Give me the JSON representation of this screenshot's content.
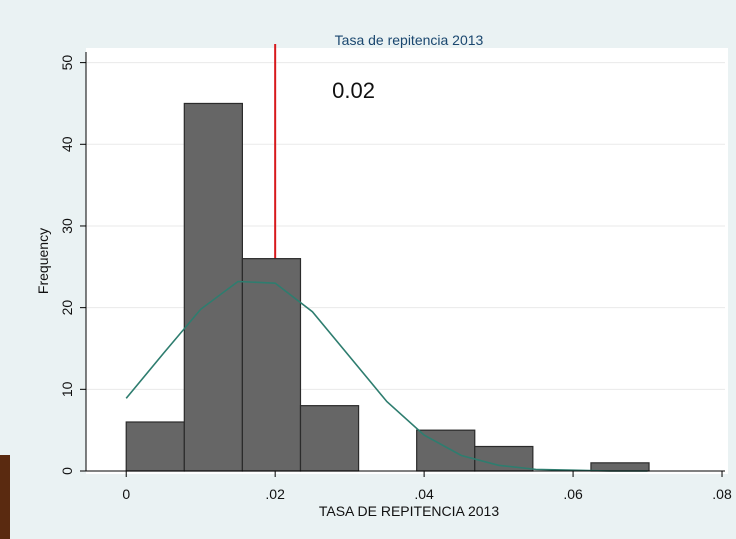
{
  "chart_data": {
    "type": "histogram",
    "title": "Tasa de repitencia 2013",
    "xlabel": "TASA DE REPITENCIA 2013",
    "ylabel": "Frequency",
    "bins": [
      0,
      0.0078,
      0.0156,
      0.0234,
      0.0312,
      0.039,
      0.0468,
      0.0546,
      0.0624,
      0.0702
    ],
    "values": [
      6,
      45,
      26,
      8,
      0,
      5,
      3,
      0,
      1
    ],
    "color": "#666666",
    "curve": {
      "color": "#2e7d6f",
      "x": [
        0,
        0.005,
        0.01,
        0.015,
        0.02,
        0.025,
        0.03,
        0.035,
        0.04,
        0.045,
        0.05,
        0.055,
        0.06,
        0.065,
        0.07
      ],
      "values": [
        8.9,
        14.4,
        19.8,
        23.2,
        23.0,
        19.5,
        14.0,
        8.5,
        4.4,
        1.9,
        0.7,
        0.2,
        0.1,
        0,
        0
      ]
    },
    "xline": {
      "value": 0.02,
      "label": "0.02",
      "color": "#d7191c"
    },
    "xlim": [
      -0.0054,
      0.0804
    ],
    "ylim": [
      0,
      51.3
    ],
    "xticks": [
      0,
      {
        "value": 0.02,
        "label": ".02"
      },
      {
        "value": 0.04,
        "label": ".04"
      },
      {
        "value": 0.06,
        "label": ".06"
      },
      {
        "value": 0.08,
        "label": ".08"
      }
    ],
    "yticks": [
      0,
      10,
      20,
      30,
      40,
      50
    ],
    "grid": true
  }
}
